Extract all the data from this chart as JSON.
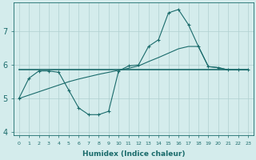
{
  "xlabel": "Humidex (Indice chaleur)",
  "bg_color": "#d4ecec",
  "grid_color": "#b0d0d0",
  "line_color": "#1a6b6b",
  "xlim": [
    -0.5,
    23.5
  ],
  "ylim": [
    3.9,
    7.85
  ],
  "yticks": [
    4,
    5,
    6,
    7
  ],
  "xtick_labels": [
    "0",
    "1",
    "2",
    "3",
    "4",
    "5",
    "6",
    "7",
    "8",
    "9",
    "10",
    "11",
    "12",
    "13",
    "14",
    "15",
    "16",
    "17",
    "18",
    "19",
    "20",
    "21",
    "22",
    "23"
  ],
  "line_wavy_x": [
    0,
    1,
    2,
    3,
    4,
    5,
    6,
    7,
    8,
    9,
    10,
    11,
    12,
    13,
    14,
    15,
    16,
    17,
    18,
    19,
    20,
    21,
    22,
    23
  ],
  "line_wavy_y": [
    5.0,
    5.6,
    5.82,
    5.82,
    5.78,
    5.25,
    4.72,
    4.52,
    4.52,
    4.62,
    5.82,
    5.97,
    6.0,
    6.55,
    6.75,
    7.55,
    7.65,
    7.2,
    6.55,
    5.95,
    5.92,
    5.85,
    5.85,
    5.85
  ],
  "line_flat_x": [
    0,
    1,
    2,
    3,
    4,
    5,
    6,
    7,
    8,
    9,
    10,
    11,
    12,
    13,
    14,
    15,
    16,
    17,
    18,
    19,
    20,
    21,
    22,
    23
  ],
  "line_flat_y": [
    5.85,
    5.85,
    5.85,
    5.85,
    5.85,
    5.85,
    5.85,
    5.85,
    5.85,
    5.85,
    5.85,
    5.85,
    5.85,
    5.85,
    5.85,
    5.85,
    5.85,
    5.85,
    5.85,
    5.85,
    5.85,
    5.85,
    5.85,
    5.85
  ],
  "line_diag_x": [
    0,
    1,
    2,
    3,
    4,
    5,
    6,
    7,
    8,
    9,
    10,
    11,
    12,
    13,
    14,
    15,
    16,
    17,
    18,
    19,
    20,
    21,
    22,
    23
  ],
  "line_diag_y": [
    5.0,
    5.1,
    5.2,
    5.3,
    5.4,
    5.5,
    5.58,
    5.65,
    5.72,
    5.78,
    5.84,
    5.9,
    5.97,
    6.1,
    6.22,
    6.35,
    6.48,
    6.55,
    6.55,
    5.95,
    5.92,
    5.85,
    5.85,
    5.85
  ]
}
